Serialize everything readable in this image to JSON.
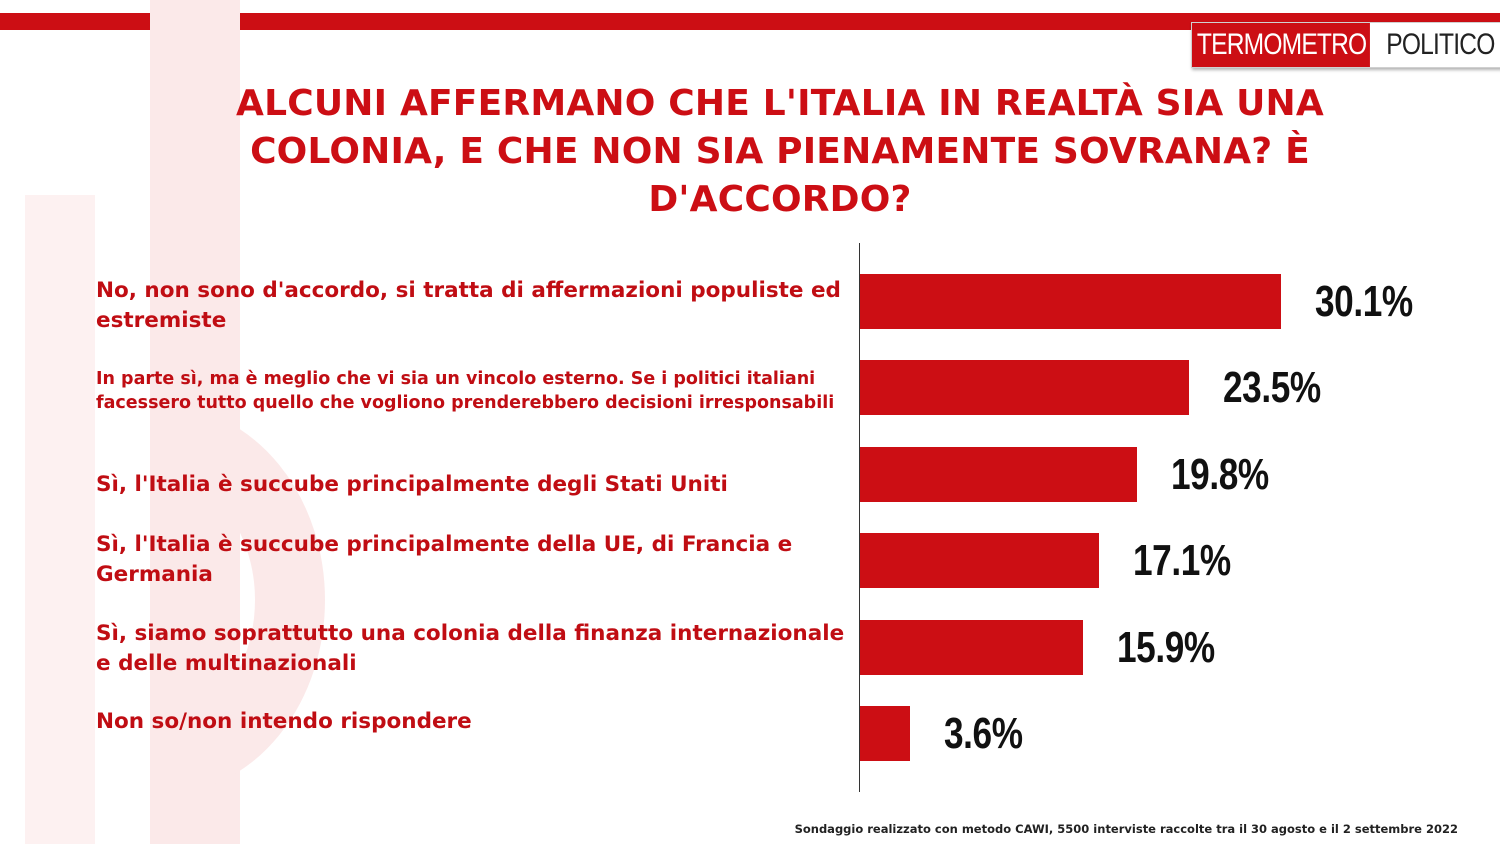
{
  "brand": {
    "logo_part1": "TERMOMETRO",
    "logo_part2": "POLITICO",
    "accent_color": "#cc0e14"
  },
  "chart_data": {
    "type": "bar",
    "orientation": "horizontal",
    "title": "ALCUNI AFFERMANO CHE L'ITALIA IN REALTÀ SIA UNA COLONIA, E CHE NON SIA PIENAMENTE SOVRANA? È D'ACCORDO?",
    "categories": [
      "No, non sono d'accordo, si tratta di affermazioni populiste ed estremiste",
      "In parte sì, ma è meglio che vi sia un vincolo esterno. Se i politici italiani facessero tutto quello che vogliono prenderebbero decisioni irresponsabili",
      "Sì, l'Italia è succube principalmente degli Stati Uniti",
      "Sì, l'Italia è succube principalmente della UE, di Francia e Germania",
      "Sì, siamo soprattutto una colonia della finanza internazionale e delle multinazionali",
      "Non so/non intendo rispondere"
    ],
    "values": [
      30.1,
      23.5,
      19.8,
      17.1,
      15.9,
      3.6
    ],
    "value_labels": [
      "30.1%",
      "23.5%",
      "19.8%",
      "17.1%",
      "15.9%",
      "3.6%"
    ],
    "unit": "%",
    "bar_color": "#cc0e14",
    "xlim": [
      0,
      45
    ],
    "grid": false,
    "legend": "none"
  },
  "footnote": "Sondaggio realizzato con metodo CAWI, 5500 interviste raccolte tra il 30 agosto  e il 2 settembre 2022"
}
